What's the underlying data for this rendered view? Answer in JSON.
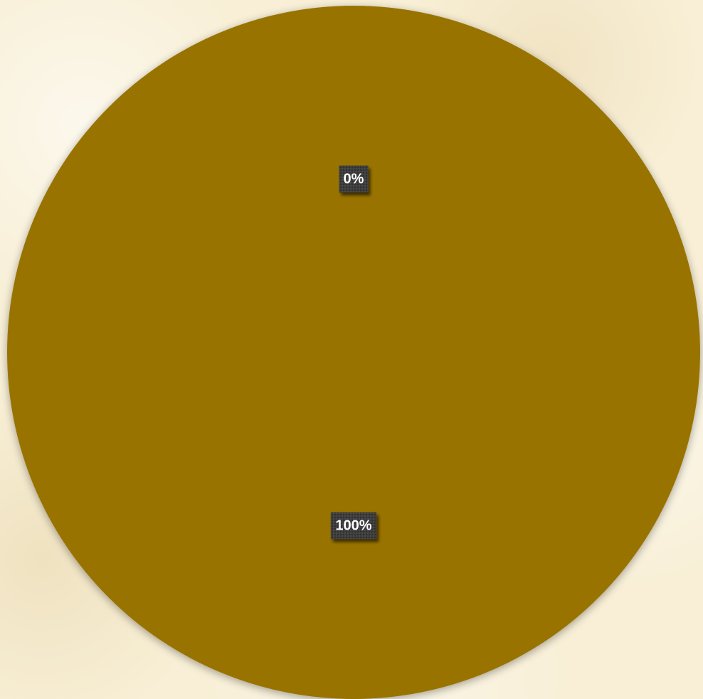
{
  "chart_data": {
    "type": "pie",
    "categories": [
      "",
      ""
    ],
    "values": [
      0,
      100
    ],
    "data_labels": [
      "0%",
      "100%"
    ],
    "colors": [
      "#997300",
      "#997300"
    ],
    "legend": "none"
  }
}
